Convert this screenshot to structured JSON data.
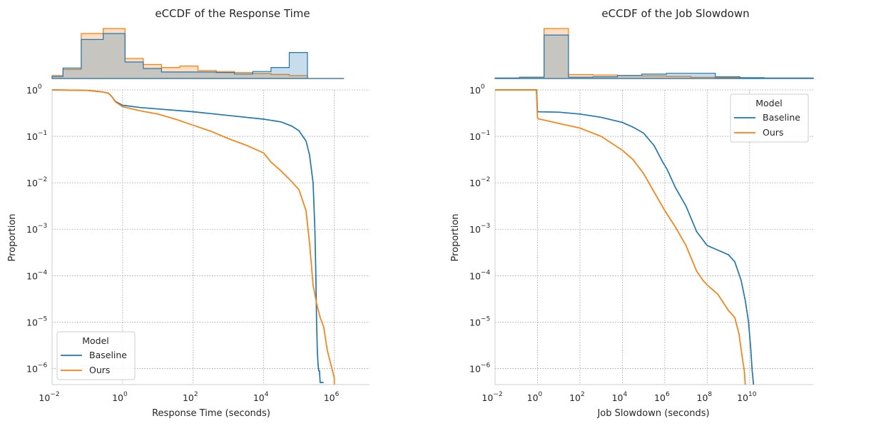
{
  "colors": {
    "baseline": "#1f77b4",
    "ours": "#ff7f0e",
    "grid": "#9a9a9a",
    "spine": "#cccccc"
  },
  "chart_data": [
    {
      "type": "line",
      "title": "eCCDF of the Response Time",
      "xlabel": "Response Time (seconds)",
      "ylabel": "Proportion",
      "xscale": "log",
      "yscale": "log",
      "xlim": [
        0.01,
        10000000
      ],
      "ylim": [
        4.5e-07,
        1.0
      ],
      "xticks": [
        {
          "base": "10",
          "exp": "−2"
        },
        {
          "base": "10",
          "exp": "0"
        },
        {
          "base": "10",
          "exp": "2"
        },
        {
          "base": "10",
          "exp": "4"
        },
        {
          "base": "10",
          "exp": "6"
        }
      ],
      "xtick_values": [
        -2,
        0,
        2,
        4,
        6
      ],
      "yticks": [
        {
          "base": "10",
          "exp": "0"
        },
        {
          "base": "10",
          "exp": "−1"
        },
        {
          "base": "10",
          "exp": "−2"
        },
        {
          "base": "10",
          "exp": "−3"
        },
        {
          "base": "10",
          "exp": "−4"
        },
        {
          "base": "10",
          "exp": "−5"
        },
        {
          "base": "10",
          "exp": "−6"
        }
      ],
      "ytick_values": [
        0,
        -1,
        -2,
        -3,
        -4,
        -5,
        -6
      ],
      "grid": true,
      "legend": {
        "title": "Model",
        "placement": "lower-left",
        "entries": [
          "Baseline",
          "Ours"
        ]
      },
      "series": [
        {
          "name": "Baseline",
          "color": "#1f77b4",
          "log10x": [
            -2,
            -1.0,
            -0.6,
            -0.4,
            -0.3,
            -0.2,
            0,
            0.5,
            1,
            2,
            3,
            4,
            4.5,
            4.8,
            5.0,
            5.2,
            5.3,
            5.4,
            5.45,
            5.48,
            5.5,
            5.52,
            5.54,
            5.56,
            5.58,
            5.6,
            5.7
          ],
          "log10y": [
            0,
            -0.01,
            -0.04,
            -0.07,
            -0.15,
            -0.25,
            -0.33,
            -0.38,
            -0.41,
            -0.47,
            -0.55,
            -0.63,
            -0.69,
            -0.78,
            -0.88,
            -1.1,
            -1.4,
            -2.0,
            -3.0,
            -4.0,
            -5.0,
            -5.6,
            -5.9,
            -6.05,
            -6.05,
            -6.3,
            -6.3
          ]
        },
        {
          "name": "Ours",
          "color": "#ff7f0e",
          "log10x": [
            -2,
            -1.0,
            -0.6,
            -0.4,
            -0.3,
            -0.2,
            0,
            0.5,
            1,
            1.5,
            2,
            2.5,
            3,
            3.5,
            4,
            4.2,
            4.5,
            4.8,
            5.0,
            5.2,
            5.3,
            5.4,
            5.45,
            5.5,
            5.6,
            5.7,
            5.8,
            5.9,
            5.95,
            6.0,
            6.0
          ],
          "log10y": [
            0,
            -0.01,
            -0.04,
            -0.07,
            -0.15,
            -0.26,
            -0.36,
            -0.45,
            -0.52,
            -0.63,
            -0.76,
            -0.89,
            -1.05,
            -1.19,
            -1.36,
            -1.55,
            -1.75,
            -1.98,
            -2.15,
            -2.6,
            -3.3,
            -4.2,
            -4.4,
            -4.6,
            -4.9,
            -5.1,
            -5.6,
            -5.9,
            -6.05,
            -6.2,
            -6.5
          ]
        }
      ],
      "marginal_hist": {
        "log10x_edges": [
          -2.0,
          -1.7,
          -1.2,
          -0.6,
          0.0,
          0.5,
          1.0,
          1.5,
          2.0,
          2.5,
          3.0,
          3.5,
          4.0,
          4.5,
          5.0,
          5.5,
          6.0
        ],
        "baseline": [
          0.04,
          0.21,
          0.78,
          0.9,
          0.33,
          0.2,
          0.13,
          0.13,
          0.13,
          0.12,
          0.09,
          0.14,
          0.22,
          0.52,
          0.0,
          0.0
        ],
        "ours": [
          0.06,
          0.18,
          0.9,
          1.0,
          0.4,
          0.28,
          0.22,
          0.25,
          0.16,
          0.14,
          0.12,
          0.1,
          0.08,
          0.06,
          0.0,
          0.0
        ]
      }
    },
    {
      "type": "line",
      "title": "eCCDF of the Job Slowdown",
      "xlabel": "Job Slowdown (seconds)",
      "ylabel": "Proportion",
      "xscale": "log",
      "yscale": "log",
      "xlim": [
        0.01,
        10000000000000
      ],
      "ylim": [
        4.5e-07,
        1.0
      ],
      "xticks": [
        {
          "base": "10",
          "exp": "−2"
        },
        {
          "base": "10",
          "exp": "0"
        },
        {
          "base": "10",
          "exp": "2"
        },
        {
          "base": "10",
          "exp": "4"
        },
        {
          "base": "10",
          "exp": "6"
        },
        {
          "base": "10",
          "exp": "8"
        },
        {
          "base": "10",
          "exp": "10"
        }
      ],
      "xtick_values": [
        -2,
        0,
        2,
        4,
        6,
        8,
        10
      ],
      "yticks": [
        {
          "base": "10",
          "exp": "0"
        },
        {
          "base": "10",
          "exp": "−1"
        },
        {
          "base": "10",
          "exp": "−2"
        },
        {
          "base": "10",
          "exp": "−3"
        },
        {
          "base": "10",
          "exp": "−4"
        },
        {
          "base": "10",
          "exp": "−5"
        },
        {
          "base": "10",
          "exp": "−6"
        }
      ],
      "ytick_values": [
        0,
        -1,
        -2,
        -3,
        -4,
        -5,
        -6
      ],
      "grid": true,
      "legend": {
        "title": "Model",
        "placement": "upper-right",
        "entries": [
          "Baseline",
          "Ours"
        ]
      },
      "series": [
        {
          "name": "Baseline",
          "color": "#1f77b4",
          "log10x": [
            -2,
            -0.05,
            0.0,
            0.01,
            1,
            2,
            3,
            4,
            4.5,
            5,
            5.5,
            5.9,
            6.1,
            6.5,
            7,
            7.5,
            8,
            8.5,
            9,
            9.3,
            9.6,
            9.8,
            9.95,
            10.05,
            10.12,
            10.2
          ],
          "log10y": [
            0,
            0,
            -0.47,
            -0.47,
            -0.48,
            -0.52,
            -0.59,
            -0.7,
            -0.8,
            -0.93,
            -1.2,
            -1.55,
            -1.7,
            -2.1,
            -2.5,
            -3.05,
            -3.35,
            -3.45,
            -3.55,
            -3.7,
            -4.1,
            -4.55,
            -5.0,
            -5.55,
            -6.05,
            -6.4
          ]
        },
        {
          "name": "Ours",
          "color": "#ff7f0e",
          "log10x": [
            -2,
            -0.05,
            0.0,
            0.01,
            1,
            2,
            3,
            4,
            4.5,
            5,
            5.5,
            6,
            6.5,
            7,
            7.5,
            7.8,
            8,
            8.5,
            9,
            9.3,
            9.5,
            9.65,
            9.75,
            9.8
          ],
          "log10y": [
            0,
            0,
            -0.6,
            -0.62,
            -0.72,
            -0.82,
            -1.0,
            -1.3,
            -1.5,
            -1.8,
            -2.2,
            -2.6,
            -2.95,
            -3.35,
            -3.9,
            -4.1,
            -4.2,
            -4.4,
            -4.75,
            -4.9,
            -5.25,
            -5.75,
            -6.05,
            -6.4
          ]
        }
      ],
      "marginal_hist": {
        "log10x_edges": [
          -2,
          -1,
          0,
          1,
          2,
          3,
          4,
          5,
          6,
          7,
          8,
          9,
          10,
          11
        ],
        "baseline": [
          0.01,
          0.03,
          1.0,
          0.03,
          0.04,
          0.07,
          0.1,
          0.12,
          0.12,
          0.04,
          0.02,
          0.01,
          0.01
        ],
        "ours": [
          0.01,
          0.03,
          1.15,
          0.09,
          0.08,
          0.07,
          0.06,
          0.05,
          0.03,
          0.02,
          0.01,
          0.01,
          0.01
        ]
      }
    }
  ]
}
